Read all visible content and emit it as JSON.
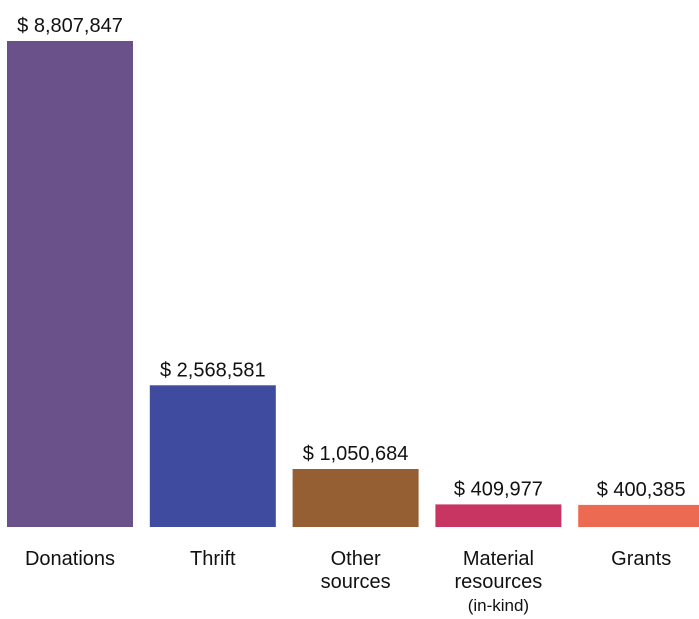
{
  "chart_data": {
    "type": "bar",
    "categories": [
      {
        "lines": [
          "Donations"
        ]
      },
      {
        "lines": [
          "Thrift"
        ]
      },
      {
        "lines": [
          "Other",
          "sources"
        ]
      },
      {
        "lines": [
          "Material",
          "resources",
          "(in-kind)"
        ]
      },
      {
        "lines": [
          "Grants"
        ]
      }
    ],
    "values": [
      8807847,
      2568581,
      1050684,
      409977,
      400385
    ],
    "value_labels": [
      "$ 8,807,847",
      "$ 2,568,581",
      "$ 1,050,684",
      "$ 409,977",
      "$ 400,385"
    ],
    "colors": [
      "#6a5189",
      "#3f4b9f",
      "#965f33",
      "#c93563",
      "#ed6a52"
    ],
    "title": "",
    "xlabel": "",
    "ylabel": "",
    "ylim": [
      0,
      8807847
    ],
    "grid": false,
    "legend": "none"
  }
}
